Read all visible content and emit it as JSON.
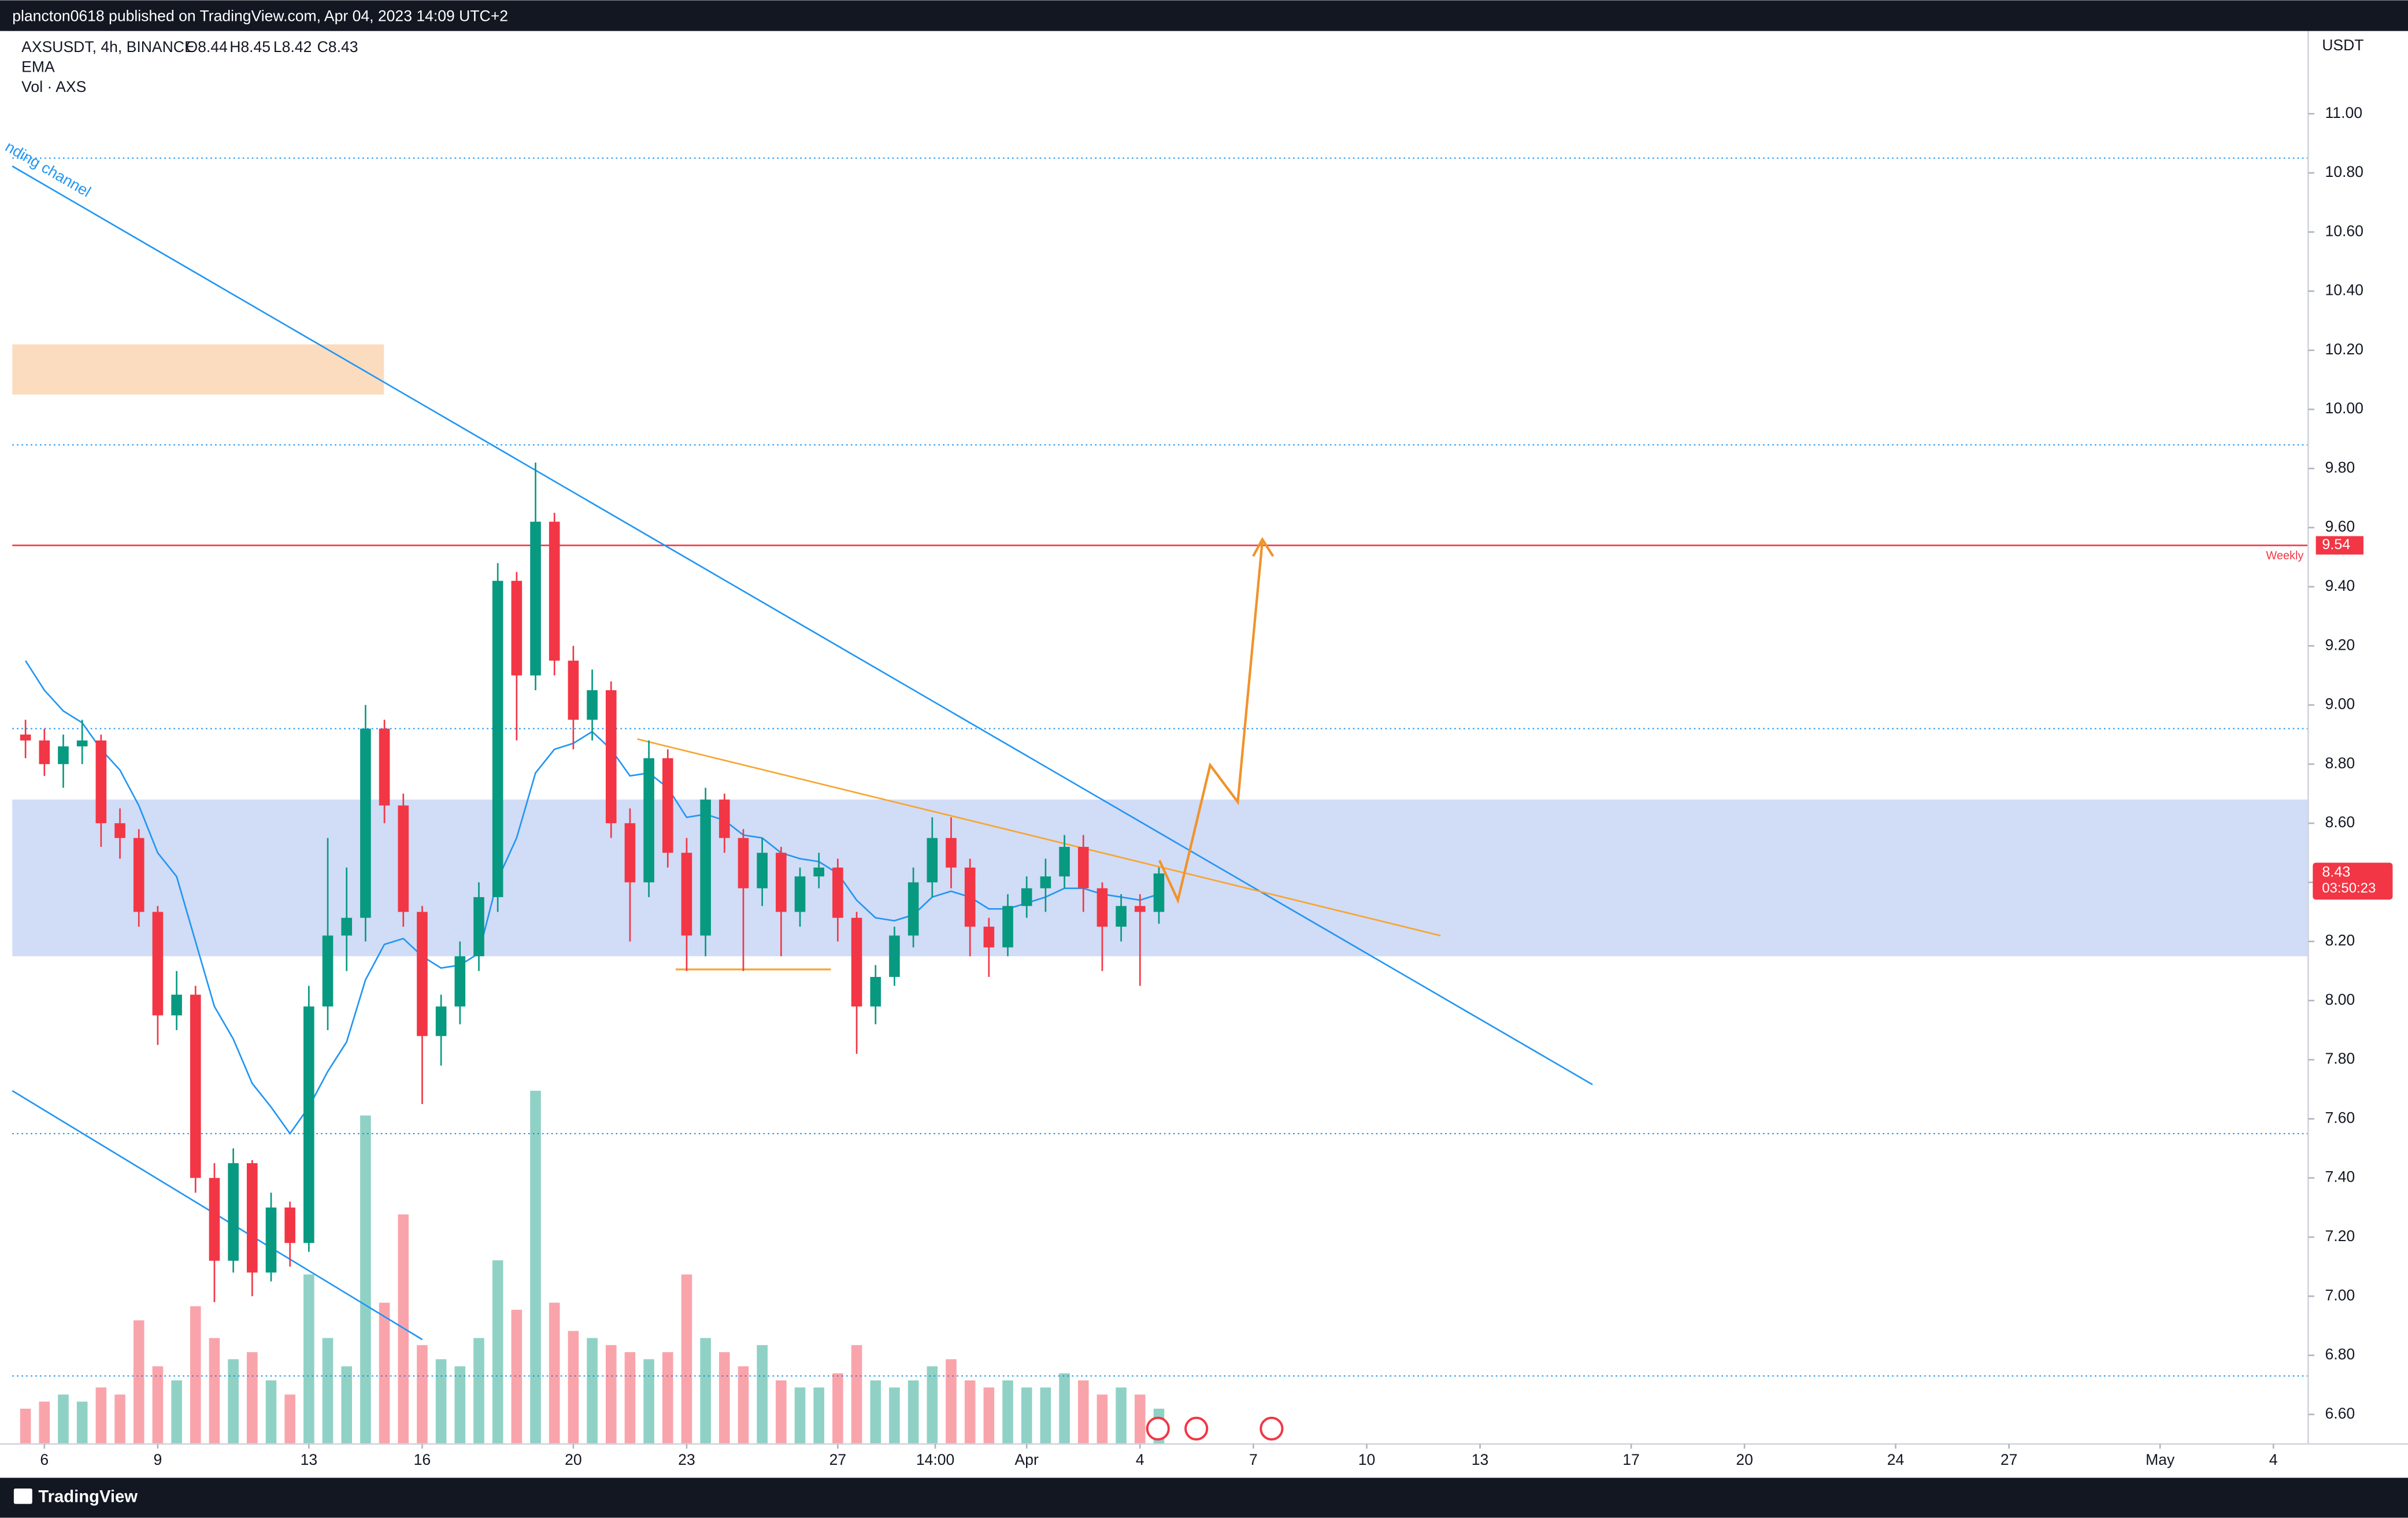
{
  "header": {
    "publisher": "plancton0618 published on TradingView.com, Apr 04, 2023 14:09 UTC+2",
    "brand": "TradingView"
  },
  "chart_data": {
    "type": "candlestick",
    "symbol": "AXSUSDT, 4h, BINANCE",
    "ohlc_legend": [
      "O8.44",
      "H8.45",
      "L8.42",
      "C8.43"
    ],
    "indicators": [
      "EMA",
      "Vol · AXS"
    ],
    "currency": "USDT",
    "x": [
      5.5,
      6,
      6.5,
      7,
      7.5,
      8,
      8.5,
      9,
      9.5,
      10,
      10.5,
      11,
      11.5,
      12,
      12.5,
      13,
      13.5,
      14,
      14.5,
      15,
      15.5,
      16,
      16.5,
      17,
      17.5,
      18,
      18.5,
      19,
      19.5,
      20,
      20.5,
      21,
      21.5,
      22,
      22.5,
      23,
      23.5,
      24,
      24.5,
      25,
      25.5,
      26,
      26.5,
      27,
      27.5,
      28,
      28.5,
      29,
      29.5,
      30,
      30.5,
      31,
      31.5,
      32,
      32.5,
      33,
      33.5,
      34,
      34.5,
      35,
      35.5
    ],
    "open": [
      8.9,
      8.88,
      8.8,
      8.86,
      8.88,
      8.6,
      8.55,
      8.3,
      7.95,
      8.02,
      7.4,
      7.12,
      7.45,
      7.08,
      7.3,
      7.18,
      7.98,
      8.22,
      8.28,
      8.92,
      8.66,
      8.3,
      7.88,
      7.98,
      8.15,
      8.35,
      9.42,
      9.1,
      9.62,
      9.15,
      8.95,
      9.05,
      8.6,
      8.4,
      8.82,
      8.5,
      8.22,
      8.68,
      8.55,
      8.38,
      8.5,
      8.3,
      8.42,
      8.45,
      8.28,
      7.98,
      8.08,
      8.22,
      8.4,
      8.55,
      8.45,
      8.25,
      8.18,
      8.32,
      8.38,
      8.42,
      8.52,
      8.38,
      8.25,
      8.32,
      8.3
    ],
    "high": [
      8.95,
      8.92,
      8.9,
      8.95,
      8.9,
      8.65,
      8.58,
      8.32,
      8.1,
      8.05,
      7.45,
      7.5,
      7.46,
      7.35,
      7.32,
      8.05,
      8.55,
      8.45,
      9.0,
      8.95,
      8.7,
      8.32,
      8.02,
      8.2,
      8.4,
      9.48,
      9.45,
      9.82,
      9.65,
      9.2,
      9.12,
      9.08,
      8.65,
      8.88,
      8.85,
      8.55,
      8.72,
      8.7,
      8.58,
      8.55,
      8.52,
      8.45,
      8.5,
      8.48,
      8.3,
      8.12,
      8.25,
      8.45,
      8.62,
      8.62,
      8.48,
      8.28,
      8.36,
      8.42,
      8.48,
      8.56,
      8.56,
      8.4,
      8.36,
      8.36,
      8.45
    ],
    "low": [
      8.82,
      8.76,
      8.72,
      8.8,
      8.52,
      8.48,
      8.25,
      7.85,
      7.9,
      7.35,
      6.98,
      7.08,
      7.0,
      7.05,
      7.1,
      7.15,
      7.9,
      8.1,
      8.2,
      8.6,
      8.25,
      7.65,
      7.78,
      7.92,
      8.1,
      8.3,
      8.88,
      9.05,
      9.1,
      8.85,
      8.88,
      8.55,
      8.2,
      8.35,
      8.45,
      8.1,
      8.15,
      8.5,
      8.1,
      8.32,
      8.15,
      8.25,
      8.38,
      8.2,
      7.82,
      7.92,
      8.05,
      8.18,
      8.35,
      8.38,
      8.15,
      8.08,
      8.15,
      8.28,
      8.3,
      8.38,
      8.3,
      8.1,
      8.2,
      8.05,
      8.26
    ],
    "close": [
      8.88,
      8.8,
      8.86,
      8.88,
      8.6,
      8.55,
      8.3,
      7.95,
      8.02,
      7.4,
      7.12,
      7.45,
      7.08,
      7.3,
      7.18,
      7.98,
      8.22,
      8.28,
      8.92,
      8.66,
      8.3,
      7.88,
      7.98,
      8.15,
      8.35,
      9.42,
      9.1,
      9.62,
      9.15,
      8.95,
      9.05,
      8.6,
      8.4,
      8.82,
      8.5,
      8.22,
      8.68,
      8.55,
      8.38,
      8.5,
      8.3,
      8.42,
      8.45,
      8.28,
      7.98,
      8.08,
      8.22,
      8.4,
      8.55,
      8.45,
      8.25,
      8.18,
      8.32,
      8.38,
      8.42,
      8.52,
      8.38,
      8.25,
      8.32,
      8.3,
      8.43
    ],
    "volume": [
      10,
      12,
      14,
      12,
      16,
      14,
      35,
      22,
      18,
      39,
      30,
      24,
      26,
      18,
      14,
      48,
      30,
      22,
      93,
      40,
      65,
      28,
      24,
      22,
      30,
      52,
      38,
      100,
      40,
      32,
      30,
      28,
      26,
      24,
      26,
      48,
      30,
      26,
      22,
      28,
      18,
      16,
      16,
      20,
      28,
      18,
      16,
      18,
      22,
      24,
      18,
      16,
      18,
      16,
      16,
      20,
      18,
      14,
      16,
      14,
      10
    ],
    "ema": [
      9.15,
      9.05,
      8.98,
      8.94,
      8.85,
      8.78,
      8.66,
      8.5,
      8.42,
      8.2,
      7.98,
      7.87,
      7.72,
      7.64,
      7.55,
      7.64,
      7.76,
      7.86,
      8.07,
      8.19,
      8.21,
      8.15,
      8.11,
      8.12,
      8.16,
      8.41,
      8.55,
      8.77,
      8.85,
      8.87,
      8.91,
      8.85,
      8.76,
      8.77,
      8.72,
      8.62,
      8.63,
      8.61,
      8.56,
      8.55,
      8.5,
      8.48,
      8.47,
      8.43,
      8.34,
      8.28,
      8.27,
      8.29,
      8.35,
      8.37,
      8.35,
      8.31,
      8.31,
      8.33,
      8.35,
      8.38,
      8.38,
      8.36,
      8.35,
      8.34,
      8.36
    ],
    "up_color": "#089981",
    "down_color": "#f23645",
    "ema_color": "#2196f3",
    "ylim": [
      6.5,
      11.28
    ],
    "yticks": [
      {
        "value": 6.6,
        "label": "6.60"
      },
      {
        "value": 6.8,
        "label": "6.80"
      },
      {
        "value": 7,
        "label": "7.00"
      },
      {
        "value": 7.2,
        "label": "7.20"
      },
      {
        "value": 7.4,
        "label": "7.40"
      },
      {
        "value": 7.6,
        "label": "7.60"
      },
      {
        "value": 7.8,
        "label": "7.80"
      },
      {
        "value": 8,
        "label": "8.00"
      },
      {
        "value": 8.2,
        "label": "8.20"
      },
      {
        "value": 8.4,
        "label": "8.40"
      },
      {
        "value": 8.6,
        "label": "8.60"
      },
      {
        "value": 8.8,
        "label": "8.80"
      },
      {
        "value": 9,
        "label": "9.00"
      },
      {
        "value": 9.2,
        "label": "9.20"
      },
      {
        "value": 9.4,
        "label": "9.40"
      },
      {
        "value": 9.6,
        "label": "9.60"
      },
      {
        "value": 9.8,
        "label": "9.80"
      },
      {
        "value": 10,
        "label": "10.00"
      },
      {
        "value": 10.2,
        "label": "10.20"
      },
      {
        "value": 10.4,
        "label": "10.40"
      },
      {
        "value": 10.6,
        "label": "10.60"
      },
      {
        "value": 10.8,
        "label": "10.80"
      },
      {
        "value": 11,
        "label": "11.00"
      }
    ],
    "xlim": [
      5.15,
      65.92
    ],
    "xticks": [
      6,
      9,
      13,
      16,
      20,
      23,
      27,
      {
        "value": 29.58,
        "label": "14:00"
      },
      {
        "value": 32,
        "label": "Apr"
      },
      {
        "value": 35,
        "label": "4"
      },
      {
        "value": 38,
        "label": "7"
      },
      {
        "value": 41,
        "label": "10"
      },
      {
        "value": 44,
        "label": "13"
      },
      {
        "value": 48,
        "label": "17"
      },
      {
        "value": 51,
        "label": "20"
      },
      {
        "value": 55,
        "label": "24"
      },
      {
        "value": 58,
        "label": "27"
      },
      {
        "value": 62,
        "label": "May"
      },
      {
        "value": 65,
        "label": "4"
      }
    ],
    "volume_lim": [
      0,
      100
    ],
    "last_price": 8.43,
    "countdown": "03:50:23",
    "price_line": {
      "value": 9.54,
      "note": "Weekly",
      "color": "#f23645"
    },
    "dotted_levels": [
      10.85,
      9.88,
      8.92,
      7.55,
      6.73
    ],
    "zones": [
      {
        "from": 8.15,
        "to": 8.68,
        "color": "#d1dcf6"
      },
      {
        "from": 10.05,
        "to": 10.22,
        "color": "#fbdcbf"
      }
    ],
    "channel_label": "nding channel"
  }
}
